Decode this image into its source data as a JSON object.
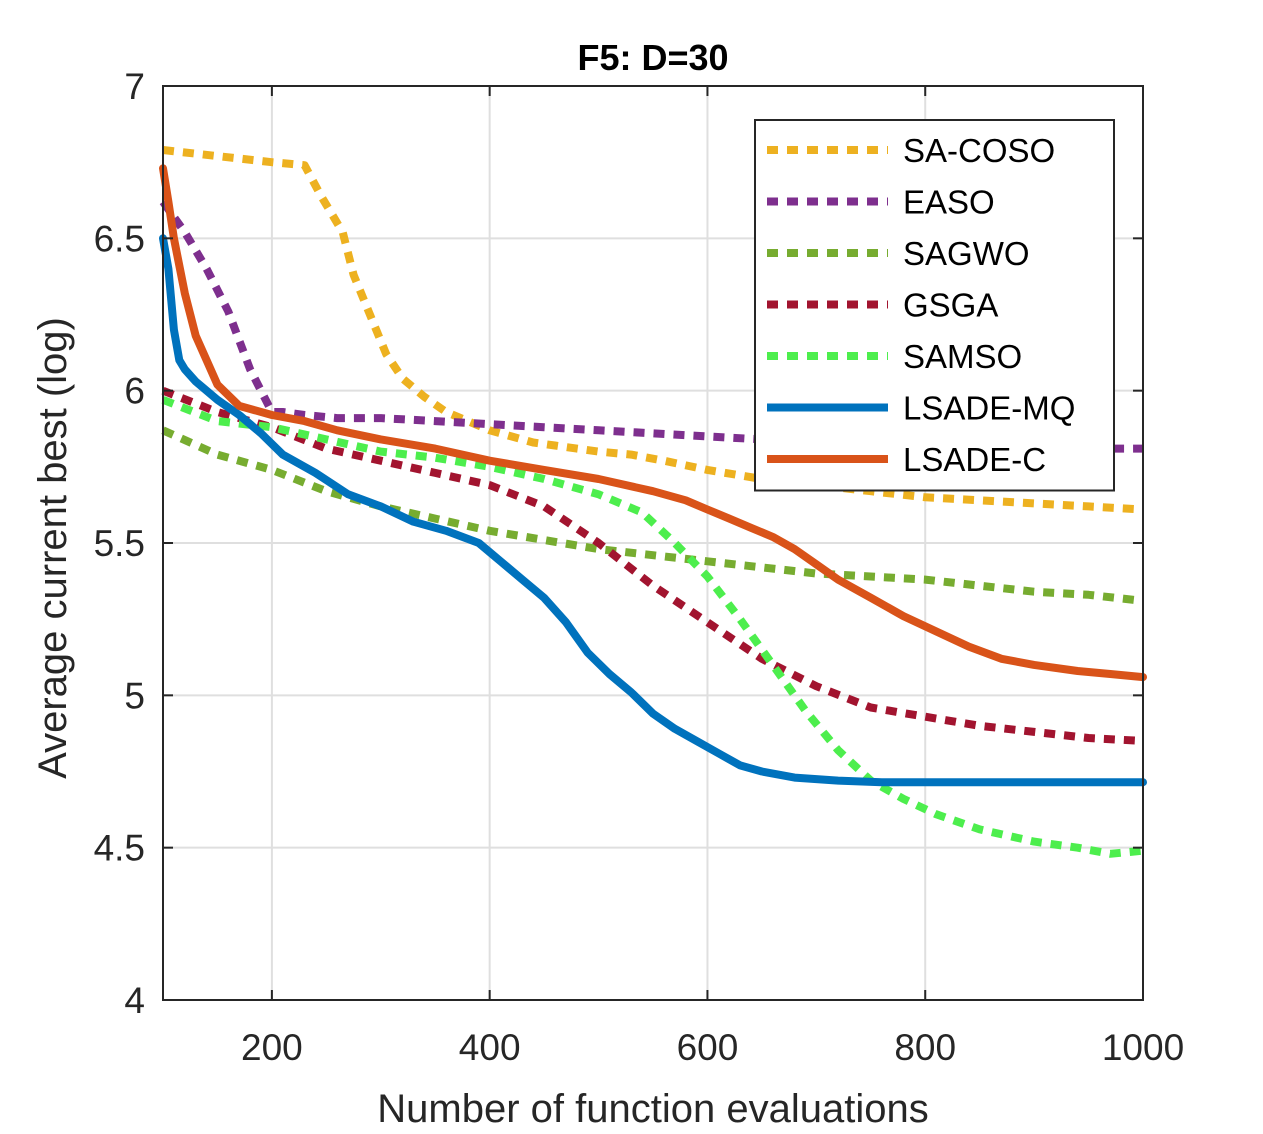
{
  "chart_data": {
    "type": "line",
    "title": "F5: D=30",
    "xlabel": "Number of function evaluations",
    "ylabel": "Average current best (log)",
    "xlim": [
      100,
      1000
    ],
    "ylim": [
      4,
      7
    ],
    "xticks": [
      200,
      400,
      600,
      800,
      1000
    ],
    "xtick_labels": [
      "200",
      "400",
      "600",
      "800",
      "1000"
    ],
    "yticks": [
      4,
      4.5,
      5,
      5.5,
      6,
      6.5,
      7
    ],
    "ytick_labels": [
      "4",
      "4.5",
      "5",
      "5.5",
      "6",
      "6.5",
      "7"
    ],
    "grid": true,
    "legend_position": "top-right",
    "series": [
      {
        "name": "SA-COSO",
        "color": "#EDB120",
        "style": "dotted",
        "x": [
          100,
          150,
          200,
          230,
          245,
          265,
          275,
          290,
          305,
          320,
          340,
          360,
          380,
          400,
          420,
          440,
          460,
          480,
          500,
          530,
          560,
          600,
          650,
          700,
          750,
          800,
          850,
          900,
          950,
          1000
        ],
        "y": [
          6.79,
          6.77,
          6.75,
          6.74,
          6.64,
          6.52,
          6.38,
          6.25,
          6.12,
          6.04,
          5.98,
          5.93,
          5.9,
          5.87,
          5.85,
          5.83,
          5.82,
          5.81,
          5.8,
          5.79,
          5.77,
          5.74,
          5.71,
          5.69,
          5.67,
          5.65,
          5.64,
          5.63,
          5.62,
          5.61
        ]
      },
      {
        "name": "EASO",
        "color": "#7E2F8E",
        "style": "dotted",
        "x": [
          100,
          120,
          140,
          160,
          180,
          200,
          210,
          230,
          260,
          300,
          350,
          400,
          450,
          500,
          550,
          600,
          650,
          700,
          750,
          800,
          850,
          900,
          950,
          1000
        ],
        "y": [
          6.62,
          6.52,
          6.4,
          6.26,
          6.07,
          5.93,
          5.93,
          5.92,
          5.91,
          5.91,
          5.9,
          5.89,
          5.88,
          5.87,
          5.86,
          5.85,
          5.84,
          5.84,
          5.83,
          5.83,
          5.82,
          5.82,
          5.81,
          5.81
        ]
      },
      {
        "name": "SAGWO",
        "color": "#77AC30",
        "style": "dotted",
        "x": [
          100,
          150,
          200,
          250,
          300,
          350,
          400,
          450,
          500,
          550,
          600,
          650,
          700,
          750,
          800,
          850,
          900,
          950,
          1000
        ],
        "y": [
          5.87,
          5.79,
          5.74,
          5.67,
          5.62,
          5.58,
          5.54,
          5.51,
          5.48,
          5.46,
          5.44,
          5.42,
          5.4,
          5.39,
          5.38,
          5.36,
          5.34,
          5.33,
          5.31
        ]
      },
      {
        "name": "GSGA",
        "color": "#A2142F",
        "style": "dotted",
        "x": [
          100,
          150,
          200,
          250,
          300,
          350,
          400,
          450,
          500,
          550,
          600,
          650,
          700,
          750,
          800,
          850,
          900,
          950,
          1000
        ],
        "y": [
          6.0,
          5.93,
          5.88,
          5.81,
          5.77,
          5.73,
          5.69,
          5.62,
          5.5,
          5.36,
          5.24,
          5.12,
          5.03,
          4.96,
          4.93,
          4.9,
          4.88,
          4.86,
          4.85
        ]
      },
      {
        "name": "SAMSO",
        "color": "#4DEE4D",
        "style": "dotted",
        "x": [
          100,
          150,
          200,
          250,
          300,
          350,
          400,
          450,
          500,
          540,
          570,
          600,
          630,
          660,
          690,
          720,
          750,
          780,
          810,
          850,
          900,
          940,
          970,
          1000
        ],
        "y": [
          5.97,
          5.9,
          5.88,
          5.84,
          5.8,
          5.78,
          5.75,
          5.71,
          5.66,
          5.6,
          5.5,
          5.39,
          5.25,
          5.1,
          4.95,
          4.82,
          4.72,
          4.66,
          4.61,
          4.56,
          4.52,
          4.5,
          4.48,
          4.49
        ]
      },
      {
        "name": "LSADE-MQ",
        "color": "#0072BD",
        "style": "solid",
        "x": [
          100,
          105,
          110,
          115,
          120,
          130,
          150,
          170,
          190,
          210,
          240,
          270,
          300,
          330,
          360,
          390,
          410,
          430,
          450,
          470,
          490,
          510,
          530,
          550,
          570,
          590,
          610,
          630,
          650,
          680,
          720,
          760,
          800,
          850,
          900,
          950,
          1000
        ],
        "y": [
          6.5,
          6.4,
          6.2,
          6.1,
          6.07,
          6.03,
          5.97,
          5.92,
          5.86,
          5.79,
          5.73,
          5.66,
          5.62,
          5.57,
          5.54,
          5.5,
          5.44,
          5.38,
          5.32,
          5.24,
          5.14,
          5.07,
          5.01,
          4.94,
          4.89,
          4.85,
          4.81,
          4.77,
          4.75,
          4.73,
          4.72,
          4.715,
          4.715,
          4.715,
          4.715,
          4.715,
          4.715
        ]
      },
      {
        "name": "LSADE-C",
        "color": "#D95319",
        "style": "solid",
        "x": [
          100,
          105,
          110,
          120,
          130,
          140,
          150,
          170,
          200,
          230,
          260,
          300,
          350,
          400,
          450,
          500,
          550,
          580,
          600,
          620,
          640,
          660,
          680,
          700,
          720,
          750,
          780,
          810,
          840,
          870,
          900,
          940,
          970,
          1000
        ],
        "y": [
          6.73,
          6.62,
          6.5,
          6.32,
          6.18,
          6.1,
          6.02,
          5.95,
          5.92,
          5.9,
          5.87,
          5.84,
          5.81,
          5.77,
          5.74,
          5.71,
          5.67,
          5.64,
          5.61,
          5.58,
          5.55,
          5.52,
          5.48,
          5.43,
          5.38,
          5.32,
          5.26,
          5.21,
          5.16,
          5.12,
          5.1,
          5.08,
          5.07,
          5.06
        ]
      }
    ]
  }
}
